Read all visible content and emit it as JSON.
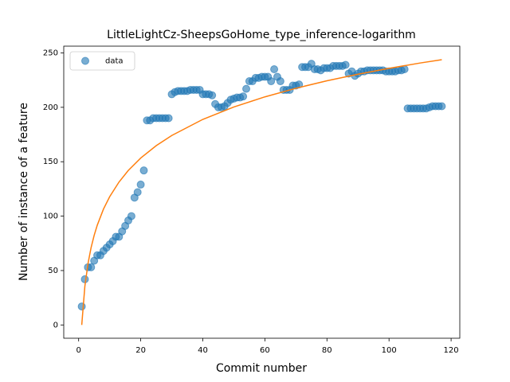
{
  "chart_data": {
    "type": "scatter",
    "title": "LittleLightCz-SheepsGoHome_type_inference-logarithm",
    "xlabel": "Commit number",
    "ylabel": "Number of instance of a feature",
    "xlim": [
      -4.8,
      122.8
    ],
    "ylim": [
      -12.2,
      256.2
    ],
    "xticks": [
      0,
      20,
      40,
      60,
      80,
      100,
      120
    ],
    "yticks": [
      0,
      50,
      100,
      150,
      200,
      250
    ],
    "legend": "upper left",
    "series": [
      {
        "name": "data",
        "color": "#1f77b4",
        "x": [
          1,
          2,
          3,
          4,
          5,
          6,
          7,
          8,
          9,
          10,
          11,
          12,
          13,
          14,
          15,
          16,
          17,
          18,
          19,
          20,
          21,
          22,
          23,
          24,
          25,
          26,
          27,
          28,
          29,
          30,
          31,
          32,
          33,
          34,
          35,
          36,
          37,
          38,
          39,
          40,
          41,
          42,
          43,
          44,
          45,
          46,
          47,
          48,
          49,
          50,
          51,
          52,
          53,
          54,
          55,
          56,
          57,
          58,
          59,
          60,
          61,
          62,
          63,
          64,
          65,
          66,
          67,
          68,
          69,
          70,
          71,
          72,
          73,
          74,
          75,
          76,
          77,
          78,
          79,
          80,
          81,
          82,
          83,
          84,
          85,
          86,
          87,
          88,
          89,
          90,
          91,
          92,
          93,
          94,
          95,
          96,
          97,
          98,
          99,
          100,
          101,
          102,
          103,
          104,
          105,
          106,
          107,
          108,
          109,
          110,
          111,
          112,
          113,
          114,
          115,
          116,
          117
        ],
        "values": [
          17,
          42,
          53,
          53,
          59,
          64,
          64,
          68,
          71,
          74,
          77,
          81,
          81,
          86,
          91,
          96,
          100,
          117,
          122,
          129,
          142,
          188,
          188,
          190,
          190,
          190,
          190,
          190,
          190,
          212,
          214,
          215,
          215,
          215,
          215,
          216,
          216,
          216,
          216,
          212,
          212,
          212,
          211,
          203,
          200,
          200,
          201,
          204,
          207,
          208,
          209,
          209,
          210,
          217,
          224,
          224,
          227,
          227,
          228,
          228,
          228,
          224,
          235,
          228,
          224,
          216,
          216,
          216,
          220,
          220,
          221,
          237,
          237,
          237,
          240,
          235,
          235,
          234,
          236,
          236,
          236,
          238,
          238,
          238,
          238,
          239,
          231,
          233,
          229,
          231,
          233,
          233,
          234,
          234,
          234,
          234,
          234,
          234,
          233,
          233,
          233,
          233,
          234,
          234,
          235,
          199,
          199,
          199,
          199,
          199,
          199,
          199,
          200,
          201,
          201,
          201,
          201
        ]
      }
    ],
    "fit": {
      "color": "#ff7f0e",
      "x": [
        1,
        2,
        3,
        4,
        5,
        6,
        8,
        10,
        13,
        16,
        20,
        25,
        30,
        40,
        50,
        60,
        70,
        80,
        90,
        100,
        110,
        117
      ],
      "values": [
        0,
        35.5,
        56.2,
        71.0,
        82.4,
        91.7,
        106.5,
        117.9,
        131.3,
        142.0,
        153.4,
        164.8,
        174.1,
        188.9,
        200.3,
        209.6,
        217.5,
        224.4,
        230.4,
        235.8,
        240.7,
        243.8
      ]
    }
  }
}
